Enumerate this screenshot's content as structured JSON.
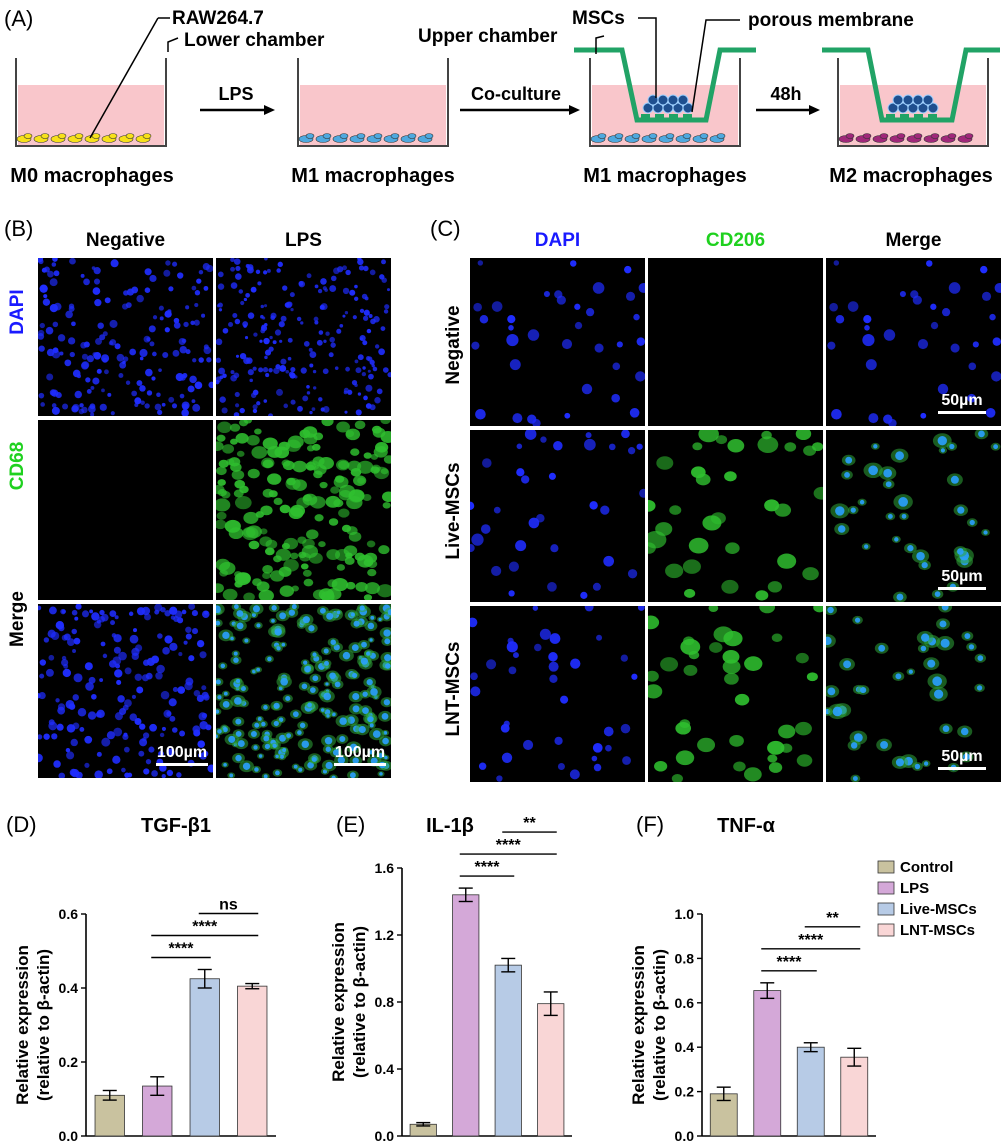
{
  "panel_a": {
    "label": "(A)",
    "callouts": {
      "raw": "RAW264.7",
      "lower_chamber": "Lower chamber",
      "mscs": "MSCs",
      "upper_chamber": "Upper chamber",
      "porous_membrane": "porous membrane"
    },
    "arrows": [
      "LPS",
      "Co-culture",
      "48h"
    ],
    "captions": [
      "M0 macrophages",
      "M1 macrophages",
      "M1 macrophages",
      "M2 macrophages"
    ],
    "colors": {
      "medium": "#f9c6cb",
      "m0": "#f7e11a",
      "m1": "#4fa9df",
      "m2": "#a0287a",
      "insert": "#21a366",
      "msc": "#1f4f8f"
    }
  },
  "panel_b": {
    "label": "(B)",
    "columns": [
      "Negative",
      "LPS"
    ],
    "rows": [
      "DAPI",
      "CD68",
      "Merge"
    ],
    "scale_bars": [
      "100µm",
      "100µm"
    ]
  },
  "panel_c": {
    "label": "(C)",
    "columns": [
      "DAPI",
      "CD206",
      "Merge"
    ],
    "rows": [
      "Negative",
      "Live-MSCs",
      "LNT-MSCs"
    ],
    "scale_bars": [
      "50µm",
      "50µm",
      "50µm"
    ]
  },
  "chart_data": [
    {
      "type": "bar",
      "panel": "(D)",
      "title": "TGF-β1",
      "ylabel": "Relative expression (relative to β-actin)",
      "ylabel_lines": [
        "Relative expression",
        "(relative to β-actin)"
      ],
      "categories": [
        "Control",
        "LPS",
        "Live-MSCs",
        "LNT-MSCs"
      ],
      "values": [
        0.11,
        0.135,
        0.425,
        0.405
      ],
      "errors": [
        0.013,
        0.025,
        0.025,
        0.007
      ],
      "ylim": [
        0,
        0.6
      ],
      "yticks": [
        "0.0",
        "0.2",
        "0.4",
        "0.6"
      ],
      "significance": [
        {
          "from": 1,
          "to": 2,
          "label": "****"
        },
        {
          "from": 1,
          "to": 3,
          "label": "****"
        },
        {
          "from": 2,
          "to": 3,
          "label": "ns"
        }
      ]
    },
    {
      "type": "bar",
      "panel": "(E)",
      "title": "IL-1β",
      "ylabel": "Relative expression (relative to β-actin)",
      "ylabel_lines": [
        "Relative expression",
        "(relative to β-actin)"
      ],
      "categories": [
        "Control",
        "LPS",
        "Live-MSCs",
        "LNT-MSCs"
      ],
      "values": [
        0.07,
        1.44,
        1.02,
        0.79
      ],
      "errors": [
        0.01,
        0.04,
        0.04,
        0.07
      ],
      "ylim": [
        0,
        1.6
      ],
      "yticks": [
        "0.0",
        "0.4",
        "0.8",
        "1.2",
        "1.6"
      ],
      "significance": [
        {
          "from": 1,
          "to": 2,
          "label": "****"
        },
        {
          "from": 1,
          "to": 3,
          "label": "****"
        },
        {
          "from": 2,
          "to": 3,
          "label": "**"
        }
      ]
    },
    {
      "type": "bar",
      "panel": "(F)",
      "title": "TNF-α",
      "ylabel": "Relative expression (relative to β-actin)",
      "ylabel_lines": [
        "Relative expression",
        "(relative to β-actin)"
      ],
      "categories": [
        "Control",
        "LPS",
        "Live-MSCs",
        "LNT-MSCs"
      ],
      "values": [
        0.19,
        0.655,
        0.4,
        0.355
      ],
      "errors": [
        0.03,
        0.035,
        0.02,
        0.04
      ],
      "ylim": [
        0,
        1.0
      ],
      "yticks": [
        "0.0",
        "0.2",
        "0.4",
        "0.6",
        "0.8",
        "1.0"
      ],
      "significance": [
        {
          "from": 1,
          "to": 2,
          "label": "****"
        },
        {
          "from": 1,
          "to": 3,
          "label": "****"
        },
        {
          "from": 2,
          "to": 3,
          "label": "**"
        }
      ],
      "legend": [
        "Control",
        "LPS",
        "Live-MSCs",
        "LNT-MSCs"
      ],
      "legend_position": "top-right"
    }
  ],
  "bar_colors": [
    "#c9c29f",
    "#d4a8d8",
    "#b7cbe6",
    "#f9d6d6"
  ]
}
